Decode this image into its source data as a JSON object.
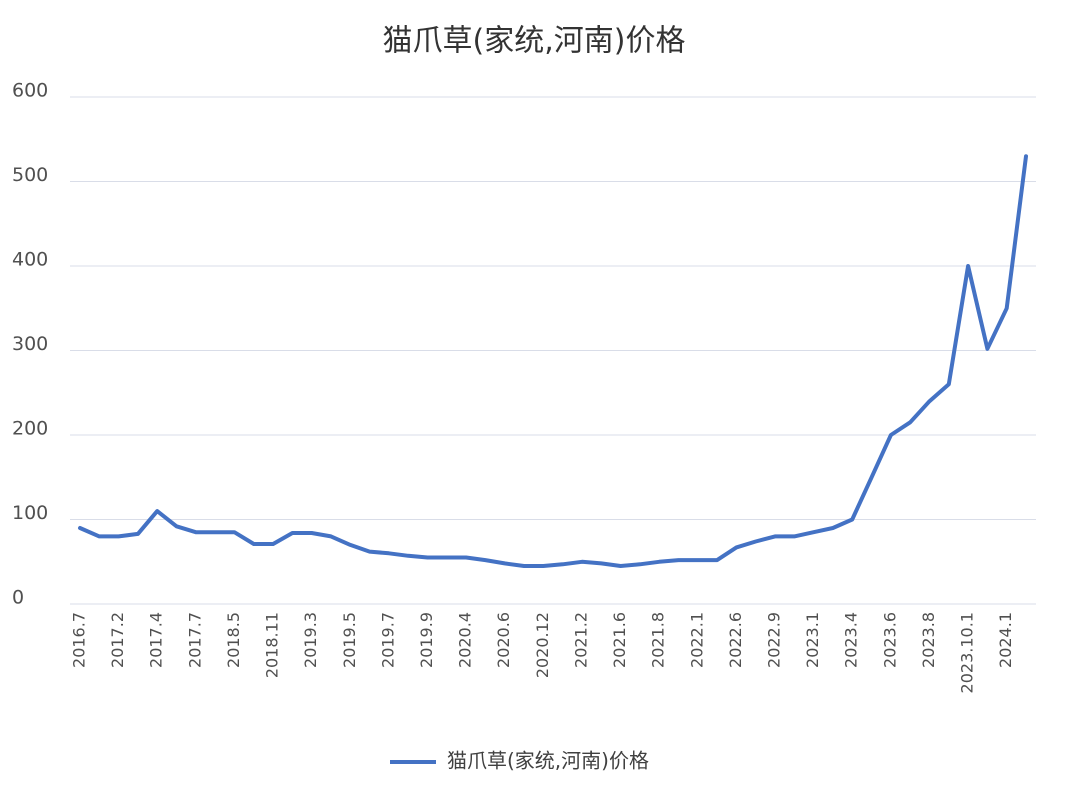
{
  "chart_data": {
    "type": "line",
    "title": "猫爪草(家统,河南)价格",
    "categories": [
      "2016.7",
      null,
      "2017.2",
      null,
      "2017.4",
      null,
      "2017.7",
      null,
      "2018.5",
      null,
      "2018.11",
      null,
      "2019.3",
      null,
      "2019.5",
      null,
      "2019.7",
      null,
      "2019.9",
      null,
      "2020.4",
      null,
      "2020.6",
      null,
      "2020.12",
      null,
      "2021.2",
      null,
      "2021.6",
      null,
      "2021.8",
      null,
      "2022.1",
      null,
      "2022.6",
      null,
      "2022.9",
      null,
      "2023.1",
      null,
      "2023.4",
      null,
      "2023.6",
      null,
      "2023.8",
      null,
      "2023.10.1",
      null,
      "2024.1",
      null
    ],
    "series": [
      {
        "name": "猫爪草(家统,河南)价格",
        "color": "#4472c4",
        "values": [
          90,
          80,
          80,
          83,
          110,
          92,
          85,
          85,
          85,
          71,
          71,
          84,
          84,
          80,
          70,
          62,
          60,
          57,
          55,
          55,
          55,
          52,
          48,
          45,
          45,
          47,
          50,
          48,
          45,
          47,
          50,
          52,
          52,
          52,
          67,
          74,
          80,
          80,
          85,
          90,
          100,
          150,
          200,
          215,
          240,
          260,
          400,
          302,
          350,
          530
        ]
      }
    ],
    "ylim": [
      0,
      600
    ],
    "yticks": [
      0,
      100,
      200,
      300,
      400,
      500,
      600
    ],
    "grid": true,
    "legend": "bottom"
  }
}
